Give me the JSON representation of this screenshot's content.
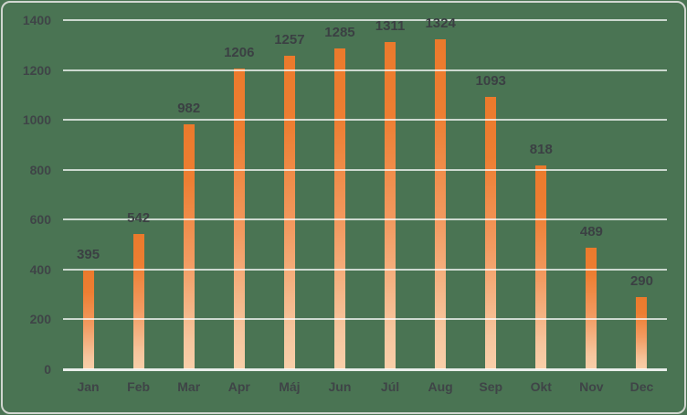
{
  "chart_data": {
    "type": "bar",
    "title": "",
    "xlabel": "",
    "ylabel": "",
    "categories": [
      "Jan",
      "Feb",
      "Mar",
      "Apr",
      "Máj",
      "Jun",
      "Júl",
      "Aug",
      "Sep",
      "Okt",
      "Nov",
      "Dec"
    ],
    "values": [
      395,
      542,
      982,
      1206,
      1257,
      1285,
      1311,
      1324,
      1093,
      818,
      489,
      290
    ],
    "data_labels": [
      "395",
      "542",
      "982",
      "1206",
      "1257",
      "1285",
      "1311",
      "1324",
      "1093",
      "818",
      "489",
      "290"
    ],
    "ylim": [
      0,
      1400
    ],
    "yticks": [
      0,
      200,
      400,
      600,
      800,
      1000,
      1200,
      1400
    ],
    "grid": "horizontal",
    "legend": "none",
    "colors": {
      "background": "#4A7453",
      "frame_border": "#D1D6D0",
      "bar_gradient_top": "#ED7D31",
      "bar_gradient_bottom": "#F8CFA9",
      "gridline": "#DCE0DB",
      "label_text": "#3F4447"
    }
  }
}
